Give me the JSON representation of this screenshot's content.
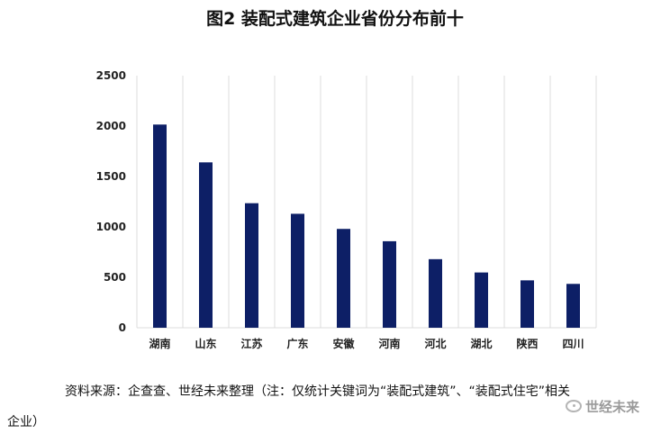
{
  "chart_data": {
    "type": "bar",
    "title": "图2 装配式建筑企业省份分布前十",
    "categories": [
      "湖南",
      "山东",
      "江苏",
      "广东",
      "安徽",
      "河南",
      "河北",
      "湖北",
      "陕西",
      "四川"
    ],
    "values": [
      2015,
      1640,
      1235,
      1130,
      980,
      858,
      680,
      548,
      470,
      435
    ],
    "yticks": [
      0,
      500,
      1000,
      1500,
      2000,
      2500
    ],
    "ylim": [
      0,
      2500
    ],
    "xlabel": "",
    "ylabel": "",
    "grid": "vertical",
    "bar_color": "#0d1f66"
  },
  "source": {
    "line1": "资料来源：企查查、世经未来整理（注：仅统计关键词为“装配式建筑”、“装配式住宅”相关",
    "line2": "企业）"
  },
  "watermark": {
    "text": "世经未来",
    "icon": "wechat-icon"
  }
}
